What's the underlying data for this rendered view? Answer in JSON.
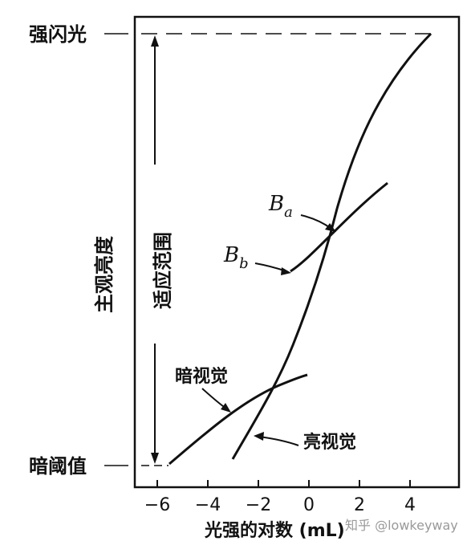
{
  "labels": {
    "top_left": "强闪光",
    "bottom_left": "暗阈值",
    "y_axis": "主观亮度",
    "range": "适应范围",
    "x_axis": "光强的对数 (mL)",
    "Ba_main": "B",
    "Ba_sub": "a",
    "Bb_main": "B",
    "Bb_sub": "b",
    "scotopic": "暗视觉",
    "photopic": "亮视觉",
    "watermark": "知乎 @lowkeyway"
  },
  "x_ticks": [
    {
      "label": "−6",
      "value": -6
    },
    {
      "label": "−4",
      "value": -4
    },
    {
      "label": "−2",
      "value": -2
    },
    {
      "label": "0",
      "value": 0
    },
    {
      "label": "2",
      "value": 2
    },
    {
      "label": "4",
      "value": 4
    }
  ]
}
